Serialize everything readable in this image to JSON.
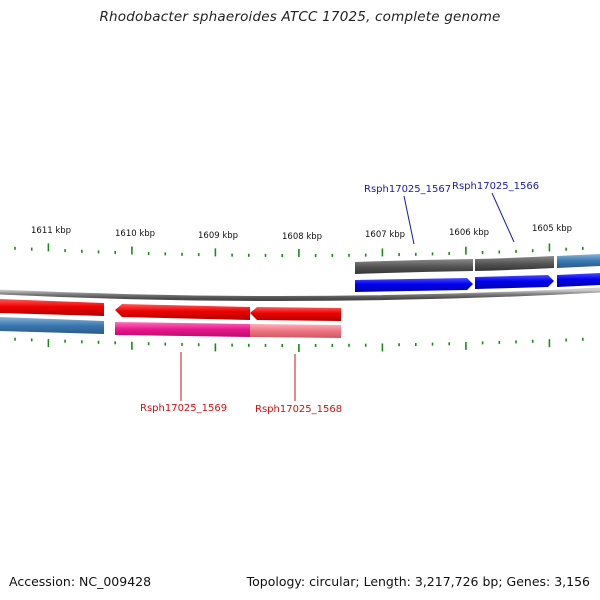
{
  "title": "Rhodobacter sphaeroides ATCC 17025, complete genome",
  "footer": {
    "accession": "Accession: NC_009428",
    "summary": "Topology: circular; Length: 3,217,726 bp; Genes: 3,156"
  },
  "ticks": {
    "labels": [
      "1611 kbp",
      "1610 kbp",
      "1609 kbp",
      "1608 kbp",
      "1607 kbp",
      "1606 kbp",
      "1605 kbp"
    ],
    "color": "#1a8a1a"
  },
  "genes": {
    "forward": [
      {
        "id": "Rsph17025_1567",
        "color": "#0000ee"
      },
      {
        "id": "Rsph17025_1566",
        "color": "#0000ee"
      }
    ],
    "reverse": [
      {
        "id": "Rsph17025_1569",
        "color": "#ee1111"
      },
      {
        "id": "Rsph17025_1568",
        "color": "#ee1111"
      }
    ]
  },
  "colors": {
    "forward_cds": "#0000ee",
    "reverse_cds": "#ee0000",
    "forward_gene": "#555555",
    "reverse_gene_1569": "#e8158c",
    "reverse_gene_1568": "#ee6677",
    "other_gene": "#3a78b0",
    "backbone": "#8a8a8a",
    "label_forward": "#1a1aaa",
    "label_reverse": "#cc1111"
  }
}
